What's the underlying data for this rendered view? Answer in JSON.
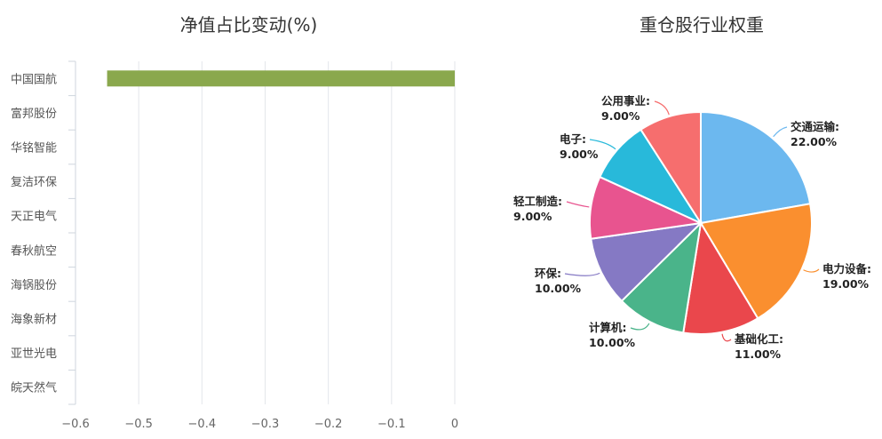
{
  "chart_data": [
    {
      "type": "bar",
      "orientation": "horizontal",
      "title": "净值占比变动(%)",
      "categories": [
        "中国国航",
        "富邦股份",
        "华铭智能",
        "复洁环保",
        "天正电气",
        "春秋航空",
        "海锅股份",
        "海象新材",
        "亚世光电",
        "皖天然气"
      ],
      "values": [
        -0.55,
        0,
        0,
        0,
        0,
        0,
        0,
        0,
        0,
        0
      ],
      "xlim": [
        -0.6,
        0
      ],
      "xticks": [
        "-0.6",
        "-0.5",
        "-0.4",
        "-0.3",
        "-0.2",
        "-0.1",
        "0"
      ],
      "grid": true,
      "bar_color": "#8aa84d",
      "xlabel": "",
      "ylabel": ""
    },
    {
      "type": "pie",
      "title": "重仓股行业权重",
      "slices": [
        {
          "label": "交通运输",
          "value": 22.0,
          "text": "22.00%",
          "color": "#6cb8ef"
        },
        {
          "label": "电力设备",
          "value": 19.0,
          "text": "19.00%",
          "color": "#fa8f2f"
        },
        {
          "label": "基础化工",
          "value": 11.0,
          "text": "11.00%",
          "color": "#ea474c"
        },
        {
          "label": "计算机",
          "value": 10.0,
          "text": "10.00%",
          "color": "#4ab48a"
        },
        {
          "label": "环保",
          "value": 10.0,
          "text": "10.00%",
          "color": "#8579c4"
        },
        {
          "label": "轻工制造",
          "value": 9.0,
          "text": "9.00%",
          "color": "#e8548f"
        },
        {
          "label": "电子",
          "value": 9.0,
          "text": "9.00%",
          "color": "#28b9da"
        },
        {
          "label": "公用事业",
          "value": 9.0,
          "text": "9.00%",
          "color": "#f66e6e"
        }
      ]
    }
  ]
}
